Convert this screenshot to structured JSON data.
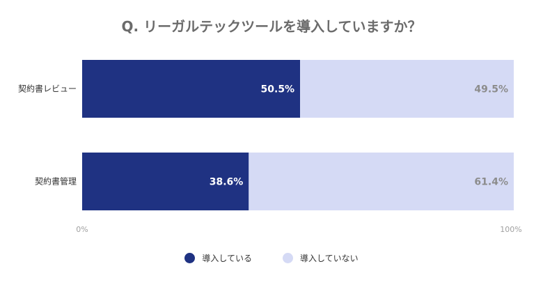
{
  "chart_data": {
    "type": "bar",
    "orientation": "horizontal",
    "stacked": true,
    "title": "Q. リーガルテックツールを導入していますか？",
    "categories": [
      "契約書レビュー",
      "契約書管理"
    ],
    "series": [
      {
        "name": "導入している",
        "values": [
          50.5,
          38.6
        ],
        "labels": [
          "50.5%",
          "38.6%"
        ],
        "color": "#1f3282",
        "label_color": "#ffffff"
      },
      {
        "name": "導入していない",
        "values": [
          49.5,
          61.4
        ],
        "labels": [
          "49.5%",
          "61.4%"
        ],
        "color": "#d5daf5",
        "label_color": "#8c8c8c"
      }
    ],
    "xlim": [
      0,
      100
    ],
    "x_ticks": [
      "0%",
      "100%"
    ],
    "grid": false,
    "legend_position": "bottom"
  }
}
